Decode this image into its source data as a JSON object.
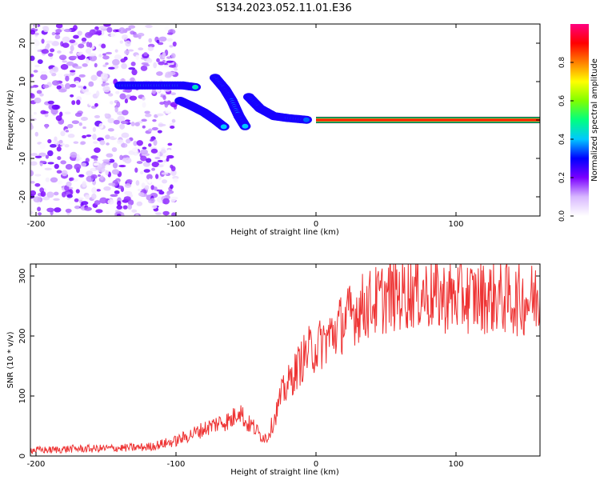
{
  "figure_title": "S134.2023.052.11.01.E36",
  "chart_data": [
    {
      "type": "heatmap",
      "title": "",
      "xlabel": "Height of straight line (km)",
      "ylabel": "Frequency (Hz)",
      "xlim": [
        -204,
        160
      ],
      "ylim": [
        -25,
        25
      ],
      "x_ticks": [
        -200,
        -100,
        0,
        100
      ],
      "y_ticks": [
        20,
        10,
        0,
        -10,
        -20
      ],
      "colorbar": {
        "label": "Normalized spectral amplitude",
        "range": [
          0,
          1
        ],
        "ticks": [
          0.0,
          0.2,
          0.4,
          0.6,
          0.8
        ],
        "colormap": [
          "#ffffff",
          "#d8b8ff",
          "#7a00ff",
          "#0000ff",
          "#00c8ff",
          "#00ff80",
          "#80ff00",
          "#ffff00",
          "#ff8000",
          "#ff0000",
          "#ff0080"
        ]
      },
      "features": [
        {
          "name": "scattered noise",
          "x": [
            -204,
            -100
          ],
          "y": [
            -25,
            25
          ],
          "amplitude": 0.15
        },
        {
          "name": "branch A",
          "points": [
            [
              -140,
              9
            ],
            [
              -125,
              9
            ],
            [
              -110,
              9
            ],
            [
              -95,
              9
            ],
            [
              -85,
              8.5
            ]
          ],
          "amplitude": 0.45
        },
        {
          "name": "branch B",
          "points": [
            [
              -97,
              5
            ],
            [
              -88,
              3.5
            ],
            [
              -80,
              2
            ],
            [
              -72,
              0
            ],
            [
              -65,
              -2
            ]
          ],
          "amplitude": 0.4
        },
        {
          "name": "branch C",
          "points": [
            [
              -72,
              11
            ],
            [
              -65,
              8
            ],
            [
              -60,
              5
            ],
            [
              -55,
              1
            ],
            [
              -50,
              -2
            ]
          ],
          "amplitude": 0.4
        },
        {
          "name": "branch D",
          "points": [
            [
              -48,
              6
            ],
            [
              -40,
              3
            ],
            [
              -30,
              1
            ],
            [
              -20,
              0.5
            ],
            [
              -5,
              0
            ]
          ],
          "amplitude": 0.35
        },
        {
          "name": "zero line",
          "x": [
            0,
            160
          ],
          "y": 0,
          "amplitude": 1.0
        }
      ]
    },
    {
      "type": "line",
      "title": "",
      "xlabel": "Height of straight line (km)",
      "ylabel": "SNR (10 * v/v)",
      "xlim": [
        -204,
        160
      ],
      "ylim": [
        0,
        320
      ],
      "x_ticks": [
        -200,
        -100,
        0,
        100
      ],
      "y_ticks": [
        0,
        100,
        200,
        300
      ],
      "series": [
        {
          "color": "#ee3333",
          "x": [
            -204,
            -190,
            -175,
            -160,
            -145,
            -130,
            -120,
            -110,
            -100,
            -90,
            -80,
            -70,
            -60,
            -55,
            -50,
            -45,
            -40,
            -35,
            -30,
            -25,
            -20,
            -15,
            -10,
            -5,
            0,
            10,
            20,
            30,
            40,
            50,
            60,
            70,
            80,
            90,
            100,
            110,
            120,
            130,
            140,
            150,
            160
          ],
          "y": [
            10,
            10,
            12,
            12,
            13,
            14,
            15,
            20,
            25,
            35,
            45,
            55,
            60,
            80,
            55,
            50,
            35,
            30,
            60,
            100,
            120,
            140,
            160,
            175,
            180,
            200,
            225,
            245,
            255,
            265,
            270,
            275,
            270,
            265,
            265,
            265,
            265,
            265,
            260,
            260,
            265
          ]
        }
      ]
    }
  ]
}
